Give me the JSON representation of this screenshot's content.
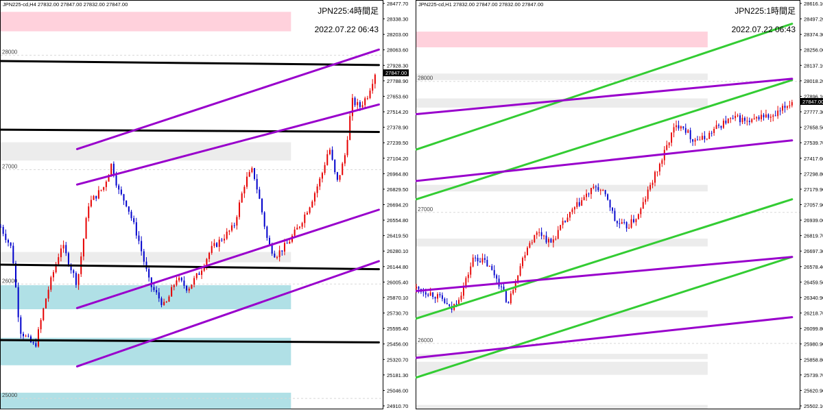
{
  "chart_data": [
    {
      "type": "candlestick",
      "header": "JPN225-cd,H4  27832.00 27847.00 27832.00 27847.00",
      "title": "JPN225:4時間足",
      "timestamp": "2022.07.22 06:43",
      "y_ticks": [
        "28477.70",
        "28338.30",
        "28203.00",
        "28063.60",
        "27928.30",
        "27788.90",
        "27653.60",
        "27514.20",
        "27378.90",
        "27239.50",
        "27104.20",
        "26964.80",
        "26829.50",
        "26694.20",
        "26554.80",
        "26419.50",
        "26280.10",
        "26144.80",
        "26005.40",
        "25870.10",
        "25730.70",
        "25595.40",
        "25456.00",
        "25320.70",
        "25181.30",
        "25046.00",
        "24910.70"
      ],
      "round_labels": [
        "28000",
        "27000",
        "26000",
        "25000"
      ],
      "last_price": "27847.00",
      "ylim": [
        24910.7,
        28477.7
      ],
      "zones": [
        {
          "type": "resistance",
          "color": "#ffd1dc",
          "y1": 28380,
          "y2": 28210
        },
        {
          "type": "neutral",
          "color": "#ececec",
          "y1": 27240,
          "y2": 27080
        },
        {
          "type": "neutral",
          "color": "#ececec",
          "y1": 26280,
          "y2": 26190
        },
        {
          "type": "support",
          "color": "#b0e0e6",
          "y1": 25990,
          "y2": 25780
        },
        {
          "type": "support",
          "color": "#b0e0e6",
          "y1": 25530,
          "y2": 25290
        },
        {
          "type": "support",
          "color": "#b0e0e6",
          "y1": 25050,
          "y2": 24910
        }
      ],
      "trendlines": [
        {
          "color": "#000000",
          "x1": 0,
          "y1": 27950,
          "x2": 0.99,
          "y2": 27915
        },
        {
          "color": "#000000",
          "x1": 0,
          "y1": 27350,
          "x2": 0.99,
          "y2": 27330
        },
        {
          "color": "#000000",
          "x1": 0,
          "y1": 26170,
          "x2": 0.99,
          "y2": 26130
        },
        {
          "color": "#000000",
          "x1": 0,
          "y1": 25510,
          "x2": 0.99,
          "y2": 25490
        },
        {
          "color": "#9900cc",
          "x1": 0.2,
          "y1": 27180,
          "x2": 0.99,
          "y2": 28050
        },
        {
          "color": "#9900cc",
          "x1": 0.2,
          "y1": 26870,
          "x2": 0.99,
          "y2": 27570
        },
        {
          "color": "#9900cc",
          "x1": 0.2,
          "y1": 25790,
          "x2": 0.99,
          "y2": 26650
        },
        {
          "color": "#9900cc",
          "x1": 0.2,
          "y1": 25280,
          "x2": 0.99,
          "y2": 26200
        }
      ],
      "path": [
        [
          0,
          26500
        ],
        [
          0.03,
          26300
        ],
        [
          0.05,
          25600
        ],
        [
          0.07,
          25520
        ],
        [
          0.09,
          25450
        ],
        [
          0.12,
          25900
        ],
        [
          0.16,
          26350
        ],
        [
          0.2,
          26000
        ],
        [
          0.23,
          26700
        ],
        [
          0.27,
          26850
        ],
        [
          0.29,
          27050
        ],
        [
          0.31,
          26800
        ],
        [
          0.33,
          26700
        ],
        [
          0.36,
          26400
        ],
        [
          0.39,
          26000
        ],
        [
          0.43,
          25800
        ],
        [
          0.46,
          26050
        ],
        [
          0.49,
          25960
        ],
        [
          0.52,
          26100
        ],
        [
          0.55,
          26300
        ],
        [
          0.58,
          26400
        ],
        [
          0.61,
          26500
        ],
        [
          0.64,
          26900
        ],
        [
          0.66,
          27000
        ],
        [
          0.68,
          26700
        ],
        [
          0.7,
          26350
        ],
        [
          0.72,
          26250
        ],
        [
          0.75,
          26350
        ],
        [
          0.78,
          26500
        ],
        [
          0.81,
          26700
        ],
        [
          0.84,
          26950
        ],
        [
          0.86,
          27200
        ],
        [
          0.88,
          26880
        ],
        [
          0.9,
          27100
        ],
        [
          0.92,
          27600
        ],
        [
          0.94,
          27550
        ],
        [
          0.96,
          27650
        ],
        [
          0.98,
          27847
        ]
      ]
    },
    {
      "type": "candlestick",
      "header": "JPN225-cd,H1  27832.00 27847.00 27832.00 27847.00",
      "title": "JPN225:1時間足",
      "timestamp": "2022.07.22 06:43",
      "y_ticks": [
        "28616.10",
        "28497.20",
        "28374.30",
        "28256.00",
        "28137.10",
        "28018.20",
        "27896.10",
        "27777.30",
        "27658.50",
        "27539.70",
        "27417.60",
        "27298.80",
        "27179.90",
        "27057.90",
        "26939.00",
        "26819.70",
        "26697.30",
        "26578.40",
        "26459.50",
        "26340.90",
        "26218.70",
        "26099.80",
        "25980.90",
        "25858.80",
        "25739.70",
        "25620.90",
        "25502.10"
      ],
      "round_labels": [
        "28000",
        "27000",
        "26000"
      ],
      "last_price": "27847.00",
      "ylim": [
        25502.1,
        28616.1
      ],
      "zones": [
        {
          "type": "resistance",
          "color": "#ffd1dc",
          "y1": 28380,
          "y2": 28260
        },
        {
          "type": "neutral",
          "color": "#ececec",
          "y1": 28060,
          "y2": 28010
        },
        {
          "type": "neutral",
          "color": "#ececec",
          "y1": 27870,
          "y2": 27800
        },
        {
          "type": "neutral",
          "color": "#ececec",
          "y1": 27210,
          "y2": 27160
        },
        {
          "type": "neutral",
          "color": "#ececec",
          "y1": 26800,
          "y2": 26740
        },
        {
          "type": "neutral",
          "color": "#ececec",
          "y1": 26250,
          "y2": 26200
        },
        {
          "type": "neutral",
          "color": "#ececec",
          "y1": 25920,
          "y2": 25880
        },
        {
          "type": "neutral",
          "color": "#ececec",
          "y1": 25860,
          "y2": 25760
        },
        {
          "type": "neutral",
          "color": "#ececec",
          "y1": 25530,
          "y2": 25502
        }
      ],
      "trendlines": [
        {
          "color": "#33cc33",
          "x1": 0,
          "y1": 27480,
          "x2": 0.98,
          "y2": 28440
        },
        {
          "color": "#33cc33",
          "x1": 0,
          "y1": 27100,
          "x2": 0.98,
          "y2": 28010
        },
        {
          "color": "#33cc33",
          "x1": 0,
          "y1": 26190,
          "x2": 0.98,
          "y2": 27100
        },
        {
          "color": "#33cc33",
          "x1": 0,
          "y1": 25740,
          "x2": 0.98,
          "y2": 26660
        },
        {
          "color": "#9900cc",
          "x1": 0,
          "y1": 27750,
          "x2": 0.98,
          "y2": 28020
        },
        {
          "color": "#9900cc",
          "x1": 0,
          "y1": 27240,
          "x2": 0.98,
          "y2": 27550
        },
        {
          "color": "#9900cc",
          "x1": 0,
          "y1": 26400,
          "x2": 0.98,
          "y2": 26660
        },
        {
          "color": "#9900cc",
          "x1": 0,
          "y1": 25890,
          "x2": 0.98,
          "y2": 26200
        }
      ],
      "path": [
        [
          0,
          26420
        ],
        [
          0.04,
          26380
        ],
        [
          0.07,
          26330
        ],
        [
          0.09,
          26250
        ],
        [
          0.12,
          26400
        ],
        [
          0.15,
          26660
        ],
        [
          0.18,
          26620
        ],
        [
          0.21,
          26500
        ],
        [
          0.24,
          26300
        ],
        [
          0.26,
          26500
        ],
        [
          0.29,
          26750
        ],
        [
          0.32,
          26860
        ],
        [
          0.35,
          26760
        ],
        [
          0.38,
          26900
        ],
        [
          0.41,
          27020
        ],
        [
          0.44,
          27120
        ],
        [
          0.47,
          27200
        ],
        [
          0.5,
          27100
        ],
        [
          0.52,
          26920
        ],
        [
          0.55,
          26890
        ],
        [
          0.58,
          26980
        ],
        [
          0.61,
          27200
        ],
        [
          0.64,
          27400
        ],
        [
          0.67,
          27630
        ],
        [
          0.69,
          27680
        ],
        [
          0.72,
          27560
        ],
        [
          0.75,
          27560
        ],
        [
          0.78,
          27640
        ],
        [
          0.81,
          27700
        ],
        [
          0.84,
          27720
        ],
        [
          0.87,
          27680
        ],
        [
          0.9,
          27740
        ],
        [
          0.93,
          27720
        ],
        [
          0.96,
          27800
        ],
        [
          0.98,
          27847
        ]
      ]
    }
  ]
}
